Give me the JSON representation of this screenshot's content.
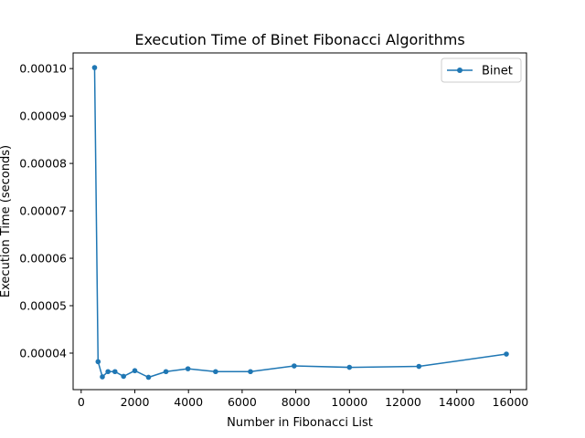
{
  "chart_data": {
    "type": "line",
    "title": "Execution Time of Binet Fibonacci Algorithms",
    "xlabel": "Number in Fibonacci List",
    "ylabel": "Execution Time (seconds)",
    "xlim": [
      -300,
      16600
    ],
    "ylim": [
      3.23e-05,
      0.0001033
    ],
    "xticks": [
      0,
      2000,
      4000,
      6000,
      8000,
      10000,
      12000,
      14000,
      16000
    ],
    "xtick_labels": [
      "0",
      "2000",
      "4000",
      "6000",
      "8000",
      "10000",
      "12000",
      "14000",
      "16000"
    ],
    "yticks": [
      4e-05,
      5e-05,
      6e-05,
      7e-05,
      8e-05,
      9e-05,
      0.0001
    ],
    "ytick_labels": [
      "0.00004",
      "0.00005",
      "0.00006",
      "0.00007",
      "0.00008",
      "0.00009",
      "0.00010"
    ],
    "grid": false,
    "legend": "top-right",
    "series": [
      {
        "name": "Binet",
        "color": "#1f77b4",
        "marker": "circle",
        "x": [
          500,
          630,
          790,
          1000,
          1260,
          1580,
          2000,
          2510,
          3160,
          3980,
          5010,
          6310,
          7940,
          10000,
          12590,
          15850
        ],
        "y": [
          0.0001002,
          3.82e-05,
          3.5e-05,
          3.61e-05,
          3.61e-05,
          3.51e-05,
          3.63e-05,
          3.49e-05,
          3.61e-05,
          3.67e-05,
          3.61e-05,
          3.61e-05,
          3.73e-05,
          3.7e-05,
          3.72e-05,
          3.98e-05
        ]
      }
    ]
  }
}
